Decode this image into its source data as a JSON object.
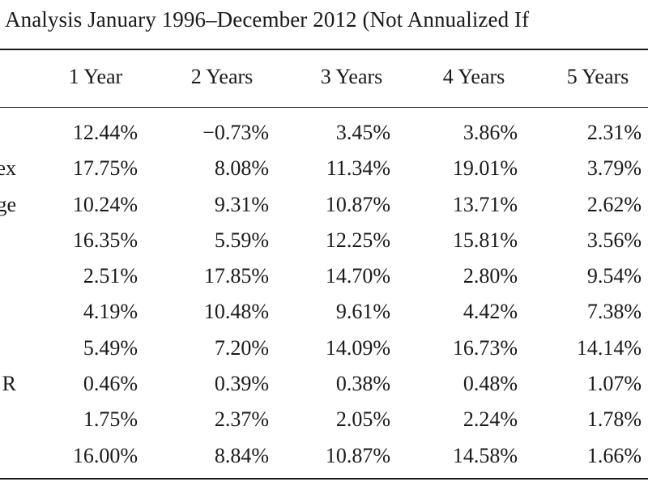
{
  "title": "Analysis January 1996–December 2012 (Not Annualized If",
  "table": {
    "columns": [
      "1 Year",
      "2 Years",
      "3 Years",
      "4 Years",
      "5 Years"
    ],
    "rows": [
      {
        "label": "",
        "values": [
          "12.44%",
          "−0.73%",
          "3.45%",
          "3.86%",
          "2.31%"
        ]
      },
      {
        "label": "ex",
        "values": [
          "17.75%",
          "8.08%",
          "11.34%",
          "19.01%",
          "3.79%"
        ]
      },
      {
        "label": "ge",
        "values": [
          "10.24%",
          "9.31%",
          "10.87%",
          "13.71%",
          "2.62%"
        ]
      },
      {
        "label": "",
        "values": [
          "16.35%",
          "5.59%",
          "12.25%",
          "15.81%",
          "3.56%"
        ]
      },
      {
        "label": "",
        "values": [
          "2.51%",
          "17.85%",
          "14.70%",
          "2.80%",
          "9.54%"
        ]
      },
      {
        "label": "",
        "values": [
          "4.19%",
          "10.48%",
          "9.61%",
          "4.42%",
          "7.38%"
        ]
      },
      {
        "label": "",
        "values": [
          "5.49%",
          "7.20%",
          "14.09%",
          "16.73%",
          "14.14%"
        ]
      },
      {
        "label": "R",
        "values": [
          "0.46%",
          "0.39%",
          "0.38%",
          "0.48%",
          "1.07%"
        ]
      },
      {
        "label": "",
        "values": [
          "1.75%",
          "2.37%",
          "2.05%",
          "2.24%",
          "1.78%"
        ]
      },
      {
        "label": "",
        "values": [
          "16.00%",
          "8.84%",
          "10.87%",
          "14.58%",
          "1.66%"
        ]
      }
    ]
  }
}
